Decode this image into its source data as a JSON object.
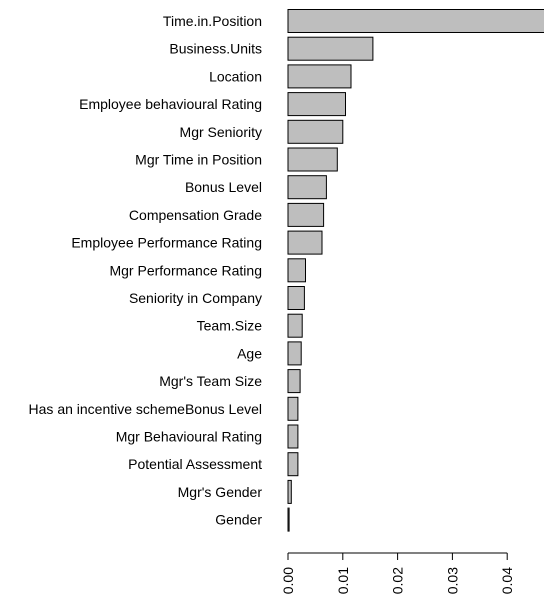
{
  "chart_data": {
    "type": "bar",
    "orientation": "horizontal",
    "categories": [
      "Time.in.Position",
      "Business.Units",
      "Location",
      "Employee behavioural Rating",
      "Mgr Seniority",
      "Mgr Time in Position",
      "Bonus Level",
      "Compensation Grade",
      "Employee Performance Rating",
      "Mgr Performance Rating",
      "Seniority in Company",
      "Team.Size",
      "Age",
      "Mgr's Team Size",
      "Has an incentive schemeBonus Level",
      "Mgr Behavioural Rating",
      "Potential Assessment",
      "Mgr's Gender",
      "Gender"
    ],
    "values": [
      0.047,
      0.0155,
      0.0115,
      0.0105,
      0.01,
      0.009,
      0.007,
      0.0065,
      0.0062,
      0.0032,
      0.003,
      0.0026,
      0.0024,
      0.0022,
      0.0018,
      0.0018,
      0.0018,
      0.0006,
      0.0002
    ],
    "xticks": [
      "0.00",
      "0.01",
      "0.02",
      "0.03",
      "0.04"
    ],
    "xtick_values": [
      0,
      0.01,
      0.02,
      0.03,
      0.04
    ],
    "xlim": [
      0,
      0.047
    ],
    "bar_color": "#bebebe",
    "bar_stroke": "#000000",
    "grid": false,
    "legend": "none",
    "title": "",
    "xlabel": "",
    "ylabel": ""
  }
}
